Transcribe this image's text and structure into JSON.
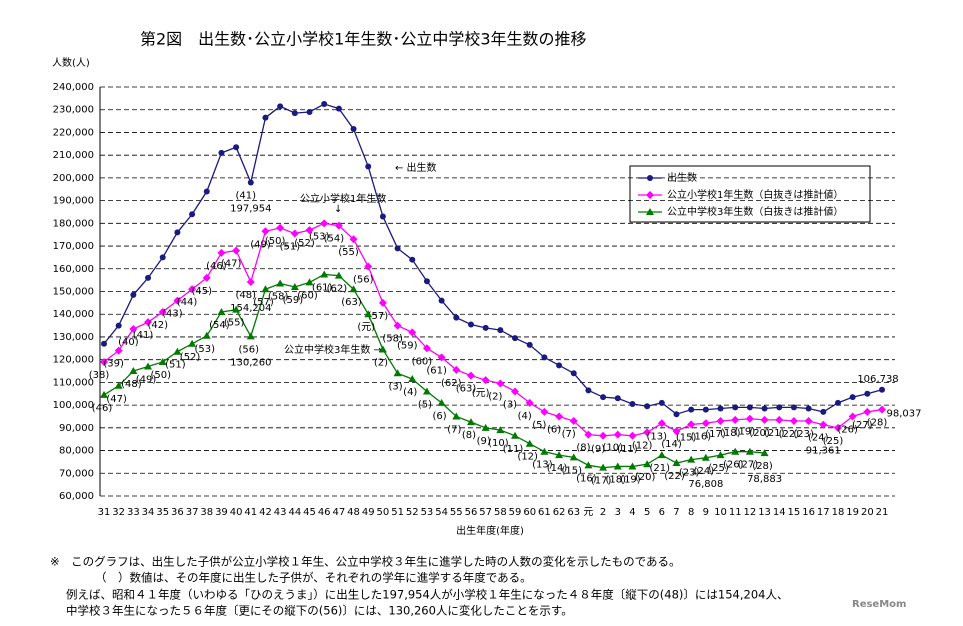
{
  "chart_data": {
    "type": "line",
    "title": "第2図　出生数･公立小学校1年生数･公立中学校3年生数の推移",
    "y_label": "人数(人)",
    "x_label": "出生年度(年度)",
    "categories": [
      "31",
      "32",
      "33",
      "34",
      "35",
      "36",
      "37",
      "38",
      "39",
      "40",
      "41",
      "42",
      "43",
      "44",
      "45",
      "46",
      "47",
      "48",
      "49",
      "50",
      "51",
      "52",
      "53",
      "54",
      "55",
      "56",
      "57",
      "58",
      "59",
      "60",
      "61",
      "62",
      "63",
      "元",
      "2",
      "3",
      "4",
      "5",
      "6",
      "7",
      "8",
      "9",
      "10",
      "11",
      "12",
      "13",
      "14",
      "15",
      "16",
      "17",
      "18",
      "19",
      "20",
      "21"
    ],
    "ylim": [
      60000,
      240000
    ],
    "yticks": [
      {
        "value": 60000,
        "label": "60,000"
      },
      {
        "value": 70000,
        "label": "70,000"
      },
      {
        "value": 80000,
        "label": "80,000"
      },
      {
        "value": 90000,
        "label": "90,000"
      },
      {
        "value": 100000,
        "label": "100,000"
      },
      {
        "value": 110000,
        "label": "110,000"
      },
      {
        "value": 120000,
        "label": "120,000"
      },
      {
        "value": 130000,
        "label": "130,000"
      },
      {
        "value": 140000,
        "label": "140,000"
      },
      {
        "value": 150000,
        "label": "150,000"
      },
      {
        "value": 160000,
        "label": "160,000"
      },
      {
        "value": 170000,
        "label": "170,000"
      },
      {
        "value": 180000,
        "label": "180,000"
      },
      {
        "value": 190000,
        "label": "190,000"
      },
      {
        "value": 200000,
        "label": "200,000"
      },
      {
        "value": 210000,
        "label": "210,000"
      },
      {
        "value": 220000,
        "label": "220,000"
      },
      {
        "value": 230000,
        "label": "230,000"
      },
      {
        "value": 240000,
        "label": "240,000"
      }
    ],
    "grid": true,
    "series": [
      {
        "name": "出生数",
        "color": "#1a1a80",
        "marker": "circle",
        "values": [
          127000,
          135000,
          148500,
          156000,
          165000,
          176000,
          184000,
          194000,
          211000,
          213500,
          197954,
          226500,
          231500,
          228500,
          229000,
          232500,
          230500,
          221500,
          205000,
          183000,
          169000,
          164000,
          154500,
          146000,
          138500,
          135500,
          134000,
          133000,
          129500,
          126500,
          121000,
          117500,
          114000,
          106500,
          103500,
          103000,
          100500,
          99500,
          101000,
          96000,
          98000,
          98000,
          98500,
          99000,
          99000,
          98500,
          99000,
          99000,
          98500,
          97000,
          101000,
          103500,
          105000,
          106738
        ],
        "value_labels": [
          null,
          null,
          null,
          null,
          null,
          null,
          null,
          null,
          null,
          null,
          "197,954",
          null,
          null,
          null,
          null,
          null,
          null,
          null,
          null,
          null,
          null,
          null,
          null,
          null,
          null,
          null,
          null,
          null,
          null,
          null,
          null,
          null,
          null,
          null,
          null,
          null,
          null,
          null,
          null,
          null,
          null,
          null,
          null,
          null,
          null,
          null,
          null,
          null,
          null,
          null,
          null,
          null,
          null,
          "106,738"
        ],
        "point_labels": [
          null,
          null,
          null,
          null,
          null,
          null,
          null,
          null,
          null,
          null,
          "(41)",
          null,
          null,
          null,
          null,
          null,
          null,
          null,
          null,
          null,
          null,
          null,
          null,
          null,
          null,
          null,
          null,
          null,
          null,
          null,
          null,
          null,
          null,
          null,
          null,
          null,
          null,
          null,
          null,
          null,
          null,
          null,
          null,
          null,
          null,
          null,
          null,
          null,
          null,
          null,
          null,
          null,
          null,
          null
        ]
      },
      {
        "name": "公立小学校1年生数（白抜きは推計値）",
        "color": "#ff00ff",
        "marker": "diamond",
        "values": [
          119000,
          124000,
          133500,
          136500,
          141000,
          146000,
          151000,
          156000,
          167000,
          168000,
          154204,
          176500,
          178000,
          175500,
          177000,
          180000,
          179000,
          173000,
          161000,
          145000,
          135000,
          132000,
          125000,
          121000,
          115500,
          113000,
          111000,
          109500,
          106000,
          101000,
          97000,
          95000,
          93000,
          87000,
          86500,
          87000,
          86500,
          88000,
          92000,
          88500,
          91500,
          92000,
          93000,
          93500,
          94000,
          93500,
          93500,
          93000,
          93000,
          91361,
          90000,
          95000,
          97000,
          98037
        ],
        "value_labels": [
          null,
          null,
          null,
          null,
          null,
          null,
          null,
          null,
          null,
          null,
          "154,204",
          null,
          null,
          null,
          null,
          null,
          null,
          null,
          null,
          null,
          null,
          null,
          null,
          null,
          null,
          null,
          null,
          null,
          null,
          null,
          null,
          null,
          null,
          null,
          null,
          null,
          null,
          null,
          null,
          null,
          null,
          null,
          null,
          null,
          null,
          null,
          null,
          null,
          null,
          "91,361",
          null,
          null,
          null,
          "98,037"
        ],
        "point_labels": [
          "(38)",
          "(39)",
          "(40)",
          "(41)",
          "(42)",
          "(43)",
          "(44)",
          "(45)",
          "(46)",
          "(47)",
          "(48)",
          "(49)",
          "(50)",
          "(51)",
          "(52)",
          "(53)",
          "(54)",
          "(55)",
          "(56)",
          "(57)",
          "(58)",
          "(59)",
          "(60)",
          "(61)",
          "(62)",
          "(63)",
          "(元)",
          "(2)",
          "(3)",
          "(4)",
          "(5)",
          "(6)",
          "(7)",
          "(8)",
          "(9)",
          "(10)",
          "(11)",
          "(12)",
          "(13)",
          "(14)",
          "(15)",
          "(16)",
          "(17)",
          "(18)",
          "(19)",
          "(20)",
          "(21)",
          "(22)",
          "(23)",
          "(24)",
          "(25)",
          "(26)",
          "(27)",
          "(28)"
        ]
      },
      {
        "name": "公立中学校3年生数（白抜きは推計値）",
        "color": "#007a00",
        "marker": "triangle",
        "values": [
          104500,
          108500,
          115000,
          117000,
          119000,
          123500,
          127000,
          130500,
          141000,
          142000,
          130260,
          151000,
          153500,
          152000,
          154000,
          157500,
          157000,
          151000,
          140000,
          124500,
          114000,
          111500,
          106000,
          101000,
          95000,
          92500,
          90000,
          89000,
          86500,
          83000,
          79500,
          78000,
          77000,
          73500,
          72500,
          73000,
          73000,
          74000,
          78000,
          74500,
          76000,
          76808,
          78000,
          79500,
          79500,
          78883,
          null,
          null,
          null,
          null,
          null,
          null,
          null,
          null
        ],
        "value_labels": [
          null,
          null,
          null,
          null,
          null,
          null,
          null,
          null,
          null,
          null,
          "130,260",
          null,
          null,
          null,
          null,
          null,
          null,
          null,
          null,
          null,
          null,
          null,
          null,
          null,
          null,
          null,
          null,
          null,
          null,
          null,
          null,
          null,
          null,
          null,
          null,
          null,
          null,
          null,
          null,
          null,
          null,
          "76,808",
          null,
          null,
          null,
          "78,883",
          null,
          null,
          null,
          null,
          null,
          null,
          null,
          null
        ],
        "point_labels": [
          "(46)",
          "(47)",
          "(48)",
          "(49)",
          "(50)",
          "(51)",
          "(52)",
          "(53)",
          "(54)",
          "(55)",
          "(56)",
          "(57)",
          "(58)",
          "(59)",
          "(60)",
          "(61)",
          "(62)",
          "(63)",
          "(元)",
          "(2)",
          "(3)",
          "(4)",
          "(5)",
          "(6)",
          "(7)",
          "(8)",
          "(9)",
          "(10)",
          "(11)",
          "(12)",
          "(13)",
          "(14)",
          "(15)",
          "(16)",
          "(17)",
          "(18)",
          "(19)",
          "(20)",
          "(21)",
          "(22)",
          "(23)",
          "(24)",
          "(25)",
          "(26)",
          "(27)",
          "(28)",
          null,
          null,
          null,
          null,
          null,
          null,
          null,
          null
        ]
      }
    ],
    "annotations": [
      "← 出生数",
      "公立小学校1年生数",
      "↓",
      "公立中学校3年生数 →"
    ],
    "notes": [
      "※　このグラフは、出生した子供が公立小学校１年生、公立中学校３年生に進学した時の人数の変化を示したものである。",
      "（　）数値は、その年度に出生した子供が、それぞれの学年に進学する年度である。",
      "例えば、昭和４１年度（いわゆる「ひのえうま」）に出生した197,954人が小学校１年生になった４８年度〔縦下の(48)〕には154,204人、",
      "中学校３年生になった５６年度〔更にその縦下の(56)〕には、130,260人に変化したことを示す。"
    ],
    "watermark": "ReseMom"
  }
}
